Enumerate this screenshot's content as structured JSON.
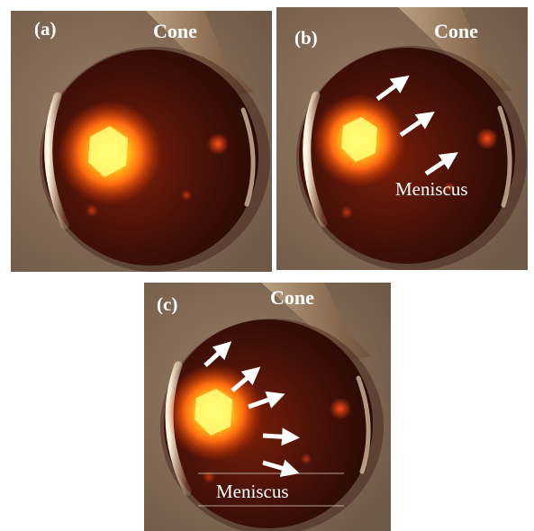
{
  "panels": [
    {
      "label": "(a)",
      "cone_label": "Cone",
      "meniscus_label": ""
    },
    {
      "label": "(b)",
      "cone_label": "Cone",
      "meniscus_label": "Meniscus"
    },
    {
      "label": "(c)",
      "cone_label": "Cone",
      "meniscus_label": "Meniscus"
    }
  ],
  "colors": {
    "background": "#8a6f57",
    "droplet_dark": "#3a0e06",
    "glow_core": "#fff24a",
    "glow_mid": "#ff6a10",
    "rim_highlight": "#f3e2c8",
    "arrow": "#ffffff"
  }
}
